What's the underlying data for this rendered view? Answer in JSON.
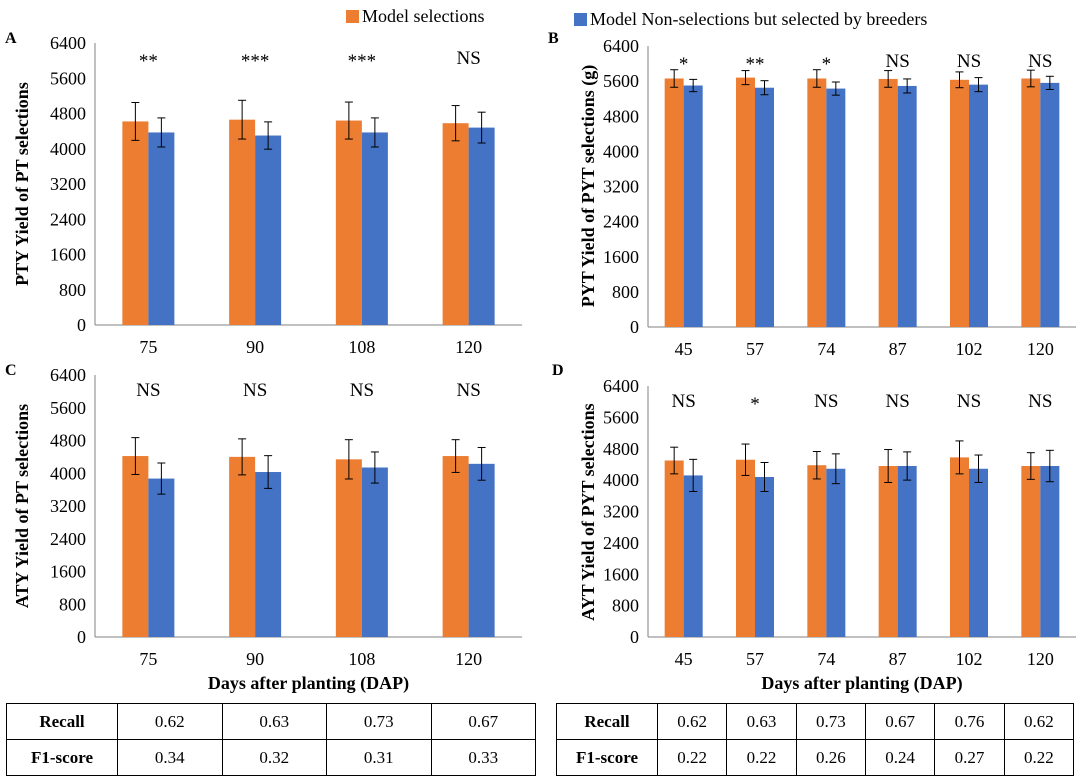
{
  "legend": {
    "items": [
      {
        "label": "Model selections",
        "color": "#ED7D31"
      },
      {
        "label": "Model Non-selections but selected by breeders",
        "color": "#4472C4"
      }
    ]
  },
  "colors": {
    "model": "#ED7D31",
    "breeder": "#4472C4"
  },
  "chart_data": [
    {
      "panel": "A",
      "type": "bar",
      "title": "",
      "xlabel": "",
      "ylabel": "PTY Yield of PT selections",
      "ylim": [
        0,
        6400
      ],
      "yticks": [
        0,
        800,
        1600,
        2400,
        3200,
        4000,
        4800,
        5600,
        6400
      ],
      "categories": [
        "75",
        "90",
        "108",
        "120"
      ],
      "series": [
        {
          "name": "Model selections",
          "values": [
            4620,
            4660,
            4640,
            4580
          ],
          "errors": [
            430,
            440,
            420,
            400
          ]
        },
        {
          "name": "Model Non-selections but selected by breeders",
          "values": [
            4370,
            4300,
            4370,
            4480
          ],
          "errors": [
            330,
            310,
            330,
            350
          ]
        }
      ],
      "annotations": [
        "**",
        "***",
        "***",
        "NS"
      ]
    },
    {
      "panel": "B",
      "type": "bar",
      "title": "",
      "xlabel": "",
      "ylabel": "PYT Yield of PYT selections  (g)",
      "ylim": [
        0,
        6400
      ],
      "yticks": [
        0,
        800,
        1600,
        2400,
        3200,
        4000,
        4800,
        5600,
        6400
      ],
      "categories": [
        "45",
        "57",
        "74",
        "87",
        "102",
        "120"
      ],
      "series": [
        {
          "name": "Model selections",
          "values": [
            5660,
            5680,
            5660,
            5650,
            5630,
            5660
          ],
          "errors": [
            200,
            160,
            200,
            190,
            180,
            190
          ]
        },
        {
          "name": "Model Non-selections but selected by breeders",
          "values": [
            5500,
            5450,
            5430,
            5490,
            5520,
            5560
          ],
          "errors": [
            140,
            160,
            150,
            160,
            160,
            150
          ]
        }
      ],
      "annotations": [
        "*",
        "**",
        "*",
        "NS",
        "NS",
        "NS"
      ]
    },
    {
      "panel": "C",
      "type": "bar",
      "title": "",
      "xlabel": "Days after planting (DAP)",
      "ylabel": "ATY Yield of PT selections",
      "ylim": [
        0,
        6400
      ],
      "yticks": [
        0,
        800,
        1600,
        2400,
        3200,
        4000,
        4800,
        5600,
        6400
      ],
      "categories": [
        "75",
        "90",
        "108",
        "120"
      ],
      "series": [
        {
          "name": "Model selections",
          "values": [
            4420,
            4400,
            4340,
            4420
          ],
          "errors": [
            450,
            440,
            480,
            400
          ]
        },
        {
          "name": "Model Non-selections but selected by breeders",
          "values": [
            3870,
            4030,
            4140,
            4230
          ],
          "errors": [
            380,
            400,
            380,
            400
          ]
        }
      ],
      "annotations": [
        "NS",
        "NS",
        "NS",
        "NS"
      ]
    },
    {
      "panel": "D",
      "type": "bar",
      "title": "",
      "xlabel": "Days after planting (DAP)",
      "ylabel": "AYT Yield of PYT selections",
      "ylim": [
        0,
        6400
      ],
      "yticks": [
        0,
        800,
        1600,
        2400,
        3200,
        4000,
        4800,
        5600,
        6400
      ],
      "categories": [
        "45",
        "57",
        "74",
        "87",
        "102",
        "120"
      ],
      "series": [
        {
          "name": "Model selections",
          "values": [
            4500,
            4520,
            4380,
            4360,
            4580,
            4360
          ],
          "errors": [
            340,
            400,
            350,
            420,
            420,
            340
          ]
        },
        {
          "name": "Model Non-selections but selected by breeders",
          "values": [
            4120,
            4080,
            4290,
            4360,
            4290,
            4360
          ],
          "errors": [
            410,
            370,
            380,
            360,
            350,
            400
          ]
        }
      ],
      "annotations": [
        "NS",
        "*",
        "NS",
        "NS",
        "NS",
        "NS"
      ]
    }
  ],
  "tables": {
    "left": {
      "rows": [
        {
          "label": "Recall",
          "values": [
            "0.62",
            "0.63",
            "0.73",
            "0.67"
          ]
        },
        {
          "label": "F1-score",
          "values": [
            "0.34",
            "0.32",
            "0.31",
            "0.33"
          ]
        }
      ]
    },
    "right": {
      "rows": [
        {
          "label": "Recall",
          "values": [
            "0.62",
            "0.63",
            "0.73",
            "0.67",
            "0.76",
            "0.62"
          ]
        },
        {
          "label": "F1-score",
          "values": [
            "0.22",
            "0.22",
            "0.26",
            "0.24",
            "0.27",
            "0.22"
          ]
        }
      ]
    }
  }
}
